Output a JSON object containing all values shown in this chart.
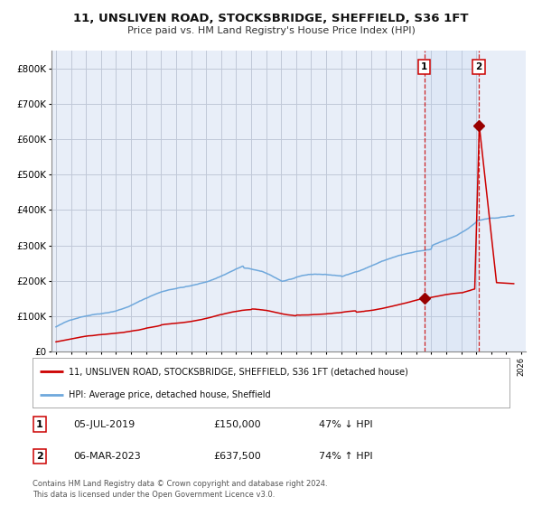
{
  "title": "11, UNSLIVEN ROAD, STOCKSBRIDGE, SHEFFIELD, S36 1FT",
  "subtitle": "Price paid vs. HM Land Registry's House Price Index (HPI)",
  "legend_line1": "11, UNSLIVEN ROAD, STOCKSBRIDGE, SHEFFIELD, S36 1FT (detached house)",
  "legend_line2": "HPI: Average price, detached house, Sheffield",
  "annotation1_date": "05-JUL-2019",
  "annotation1_price": "£150,000",
  "annotation1_hpi": "47% ↓ HPI",
  "annotation2_date": "06-MAR-2023",
  "annotation2_price": "£637,500",
  "annotation2_hpi": "74% ↑ HPI",
  "footer": "Contains HM Land Registry data © Crown copyright and database right 2024.\nThis data is licensed under the Open Government Licence v3.0.",
  "hpi_color": "#6fa8dc",
  "price_color": "#cc0000",
  "marker_color": "#990000",
  "bg_color": "#ffffff",
  "plot_bg_color": "#e8eef8",
  "grid_color": "#c0c8d8",
  "sale1_year": 2019.54,
  "sale2_year": 2023.17,
  "sale1_price": 150000,
  "sale2_price": 637500,
  "ylim_max": 850000,
  "xstart": 1995,
  "xend": 2026
}
